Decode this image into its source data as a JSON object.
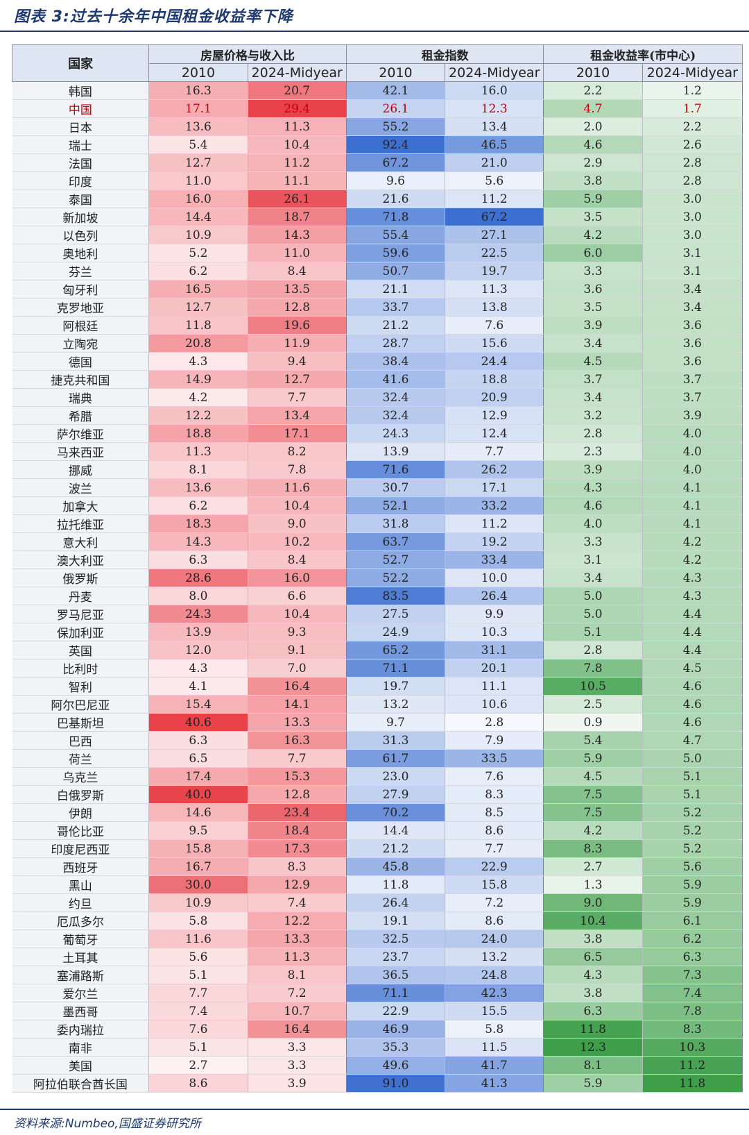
{
  "figure_title": "图表 3:过去十余年中国租金收益率下降",
  "source_note": "资料来源:Numbeo,国盛证券研究所",
  "colors": {
    "price_ratio": "#e8414a",
    "rent_index": "#3d6fd0",
    "rent_yield": "#3e9e4a"
  },
  "chart_data": {
    "type": "table",
    "title": "图表 3:过去十余年中国租金收益率下降",
    "country_header": "国家",
    "groups": [
      {
        "label": "房屋价格与收入比",
        "columns": [
          "2010",
          "2024-Midyear"
        ]
      },
      {
        "label": "租金指数",
        "columns": [
          "2010",
          "2024-Midyear"
        ]
      },
      {
        "label": "租金收益率(市中心)",
        "columns": [
          "2010",
          "2024-Midyear"
        ]
      }
    ],
    "highlight_row": "中国",
    "rows": [
      {
        "country": "韩国",
        "values": [
          "16.3",
          "20.7",
          "42.1",
          "16.0",
          "2.2",
          "1.2"
        ]
      },
      {
        "country": "中国",
        "values": [
          "17.1",
          "29.4",
          "26.1",
          "12.3",
          "4.7",
          "1.7"
        ]
      },
      {
        "country": "日本",
        "values": [
          "13.6",
          "11.3",
          "55.2",
          "13.4",
          "2.0",
          "2.2"
        ]
      },
      {
        "country": "瑞士",
        "values": [
          "5.4",
          "10.4",
          "92.4",
          "46.5",
          "4.6",
          "2.6"
        ]
      },
      {
        "country": "法国",
        "values": [
          "12.7",
          "11.2",
          "67.2",
          "21.0",
          "2.9",
          "2.8"
        ]
      },
      {
        "country": "印度",
        "values": [
          "11.0",
          "11.1",
          "9.6",
          "5.6",
          "3.8",
          "2.8"
        ]
      },
      {
        "country": "泰国",
        "values": [
          "16.0",
          "26.1",
          "21.6",
          "11.2",
          "5.9",
          "3.0"
        ]
      },
      {
        "country": "新加坡",
        "values": [
          "14.4",
          "18.7",
          "71.8",
          "67.2",
          "3.5",
          "3.0"
        ]
      },
      {
        "country": "以色列",
        "values": [
          "10.9",
          "14.3",
          "55.4",
          "27.1",
          "4.2",
          "3.0"
        ]
      },
      {
        "country": "奥地利",
        "values": [
          "5.2",
          "11.0",
          "59.6",
          "22.5",
          "6.0",
          "3.1"
        ]
      },
      {
        "country": "芬兰",
        "values": [
          "6.2",
          "8.4",
          "50.7",
          "19.7",
          "3.3",
          "3.1"
        ]
      },
      {
        "country": "匈牙利",
        "values": [
          "16.5",
          "13.5",
          "21.1",
          "11.3",
          "3.6",
          "3.4"
        ]
      },
      {
        "country": "克罗地亚",
        "values": [
          "12.7",
          "12.8",
          "33.7",
          "13.8",
          "3.5",
          "3.4"
        ]
      },
      {
        "country": "阿根廷",
        "values": [
          "11.8",
          "19.6",
          "21.2",
          "7.6",
          "3.9",
          "3.6"
        ]
      },
      {
        "country": "立陶宛",
        "values": [
          "20.8",
          "11.9",
          "28.7",
          "15.6",
          "3.4",
          "3.6"
        ]
      },
      {
        "country": "德国",
        "values": [
          "4.3",
          "9.4",
          "38.4",
          "24.4",
          "4.5",
          "3.6"
        ]
      },
      {
        "country": "捷克共和国",
        "values": [
          "14.9",
          "12.7",
          "41.6",
          "18.8",
          "3.7",
          "3.7"
        ]
      },
      {
        "country": "瑞典",
        "values": [
          "4.2",
          "7.7",
          "32.4",
          "20.9",
          "3.4",
          "3.7"
        ]
      },
      {
        "country": "希腊",
        "values": [
          "12.2",
          "13.4",
          "32.4",
          "12.9",
          "3.2",
          "3.9"
        ]
      },
      {
        "country": "萨尔维亚",
        "values": [
          "18.8",
          "17.1",
          "24.3",
          "12.4",
          "2.8",
          "4.0"
        ]
      },
      {
        "country": "马来西亚",
        "values": [
          "11.3",
          "8.2",
          "13.9",
          "7.7",
          "2.3",
          "4.0"
        ]
      },
      {
        "country": "挪威",
        "values": [
          "8.1",
          "7.8",
          "71.6",
          "26.2",
          "3.9",
          "4.0"
        ]
      },
      {
        "country": "波兰",
        "values": [
          "13.6",
          "11.6",
          "30.7",
          "17.1",
          "4.3",
          "4.1"
        ]
      },
      {
        "country": "加拿大",
        "values": [
          "6.2",
          "10.4",
          "52.1",
          "33.2",
          "4.6",
          "4.1"
        ]
      },
      {
        "country": "拉托维亚",
        "values": [
          "18.3",
          "9.0",
          "31.8",
          "11.2",
          "4.0",
          "4.1"
        ]
      },
      {
        "country": "意大利",
        "values": [
          "14.3",
          "10.2",
          "63.7",
          "19.2",
          "3.3",
          "4.2"
        ]
      },
      {
        "country": "澳大利亚",
        "values": [
          "6.3",
          "8.4",
          "52.7",
          "33.4",
          "3.1",
          "4.2"
        ]
      },
      {
        "country": "俄罗斯",
        "values": [
          "28.6",
          "16.0",
          "52.2",
          "10.0",
          "3.4",
          "4.3"
        ]
      },
      {
        "country": "丹麦",
        "values": [
          "8.0",
          "6.6",
          "83.5",
          "26.4",
          "5.0",
          "4.3"
        ]
      },
      {
        "country": "罗马尼亚",
        "values": [
          "24.3",
          "10.4",
          "27.5",
          "9.9",
          "5.0",
          "4.4"
        ]
      },
      {
        "country": "保加利亚",
        "values": [
          "13.9",
          "9.3",
          "24.9",
          "10.3",
          "5.1",
          "4.4"
        ]
      },
      {
        "country": "英国",
        "values": [
          "12.0",
          "9.1",
          "65.2",
          "31.1",
          "2.8",
          "4.4"
        ]
      },
      {
        "country": "比利时",
        "values": [
          "4.3",
          "7.0",
          "71.1",
          "20.1",
          "7.8",
          "4.5"
        ]
      },
      {
        "country": "智利",
        "values": [
          "4.1",
          "16.4",
          "19.7",
          "11.1",
          "10.5",
          "4.6"
        ]
      },
      {
        "country": "阿尔巴尼亚",
        "values": [
          "15.4",
          "14.1",
          "13.2",
          "10.6",
          "2.5",
          "4.6"
        ]
      },
      {
        "country": "巴基斯坦",
        "values": [
          "40.6",
          "13.3",
          "9.7",
          "2.8",
          "0.9",
          "4.6"
        ]
      },
      {
        "country": "巴西",
        "values": [
          "6.3",
          "16.3",
          "31.3",
          "7.9",
          "5.4",
          "4.7"
        ]
      },
      {
        "country": "荷兰",
        "values": [
          "6.5",
          "7.7",
          "61.7",
          "33.5",
          "5.9",
          "5.0"
        ]
      },
      {
        "country": "乌克兰",
        "values": [
          "17.4",
          "15.3",
          "23.0",
          "7.6",
          "4.5",
          "5.1"
        ]
      },
      {
        "country": "白俄罗斯",
        "values": [
          "40.0",
          "12.8",
          "27.9",
          "8.3",
          "7.5",
          "5.1"
        ]
      },
      {
        "country": "伊朗",
        "values": [
          "14.6",
          "23.4",
          "70.2",
          "8.5",
          "7.5",
          "5.2"
        ]
      },
      {
        "country": "哥伦比亚",
        "values": [
          "9.5",
          "18.4",
          "14.4",
          "8.6",
          "4.2",
          "5.2"
        ]
      },
      {
        "country": "印度尼西亚",
        "values": [
          "15.8",
          "17.3",
          "21.2",
          "7.7",
          "8.3",
          "5.2"
        ]
      },
      {
        "country": "西班牙",
        "values": [
          "16.7",
          "8.3",
          "45.8",
          "22.9",
          "2.7",
          "5.6"
        ]
      },
      {
        "country": "黑山",
        "values": [
          "30.0",
          "12.9",
          "11.8",
          "15.8",
          "1.3",
          "5.9"
        ]
      },
      {
        "country": "约旦",
        "values": [
          "10.9",
          "7.4",
          "26.4",
          "7.2",
          "9.0",
          "5.9"
        ]
      },
      {
        "country": "厄瓜多尔",
        "values": [
          "5.8",
          "12.2",
          "19.1",
          "8.6",
          "10.4",
          "6.1"
        ]
      },
      {
        "country": "葡萄牙",
        "values": [
          "11.6",
          "13.3",
          "32.5",
          "24.0",
          "3.8",
          "6.2"
        ]
      },
      {
        "country": "土耳其",
        "values": [
          "5.6",
          "11.3",
          "23.7",
          "13.2",
          "6.5",
          "6.3"
        ]
      },
      {
        "country": "塞浦路斯",
        "values": [
          "5.1",
          "8.1",
          "36.5",
          "24.8",
          "4.3",
          "7.3"
        ]
      },
      {
        "country": "爱尔兰",
        "values": [
          "7.7",
          "7.2",
          "71.1",
          "42.3",
          "3.8",
          "7.4"
        ]
      },
      {
        "country": "墨西哥",
        "values": [
          "7.4",
          "10.7",
          "22.9",
          "15.5",
          "6.3",
          "7.8"
        ]
      },
      {
        "country": "委内瑞拉",
        "values": [
          "7.6",
          "16.4",
          "46.9",
          "5.8",
          "11.8",
          "8.3"
        ]
      },
      {
        "country": "南非",
        "values": [
          "5.1",
          "3.3",
          "35.3",
          "11.5",
          "12.3",
          "10.3"
        ]
      },
      {
        "country": "美国",
        "values": [
          "2.7",
          "3.3",
          "49.6",
          "41.7",
          "8.1",
          "11.2"
        ]
      },
      {
        "country": "阿拉伯联合酋长国",
        "values": [
          "8.6",
          "3.9",
          "91.0",
          "41.3",
          "5.9",
          "11.8"
        ]
      }
    ]
  }
}
